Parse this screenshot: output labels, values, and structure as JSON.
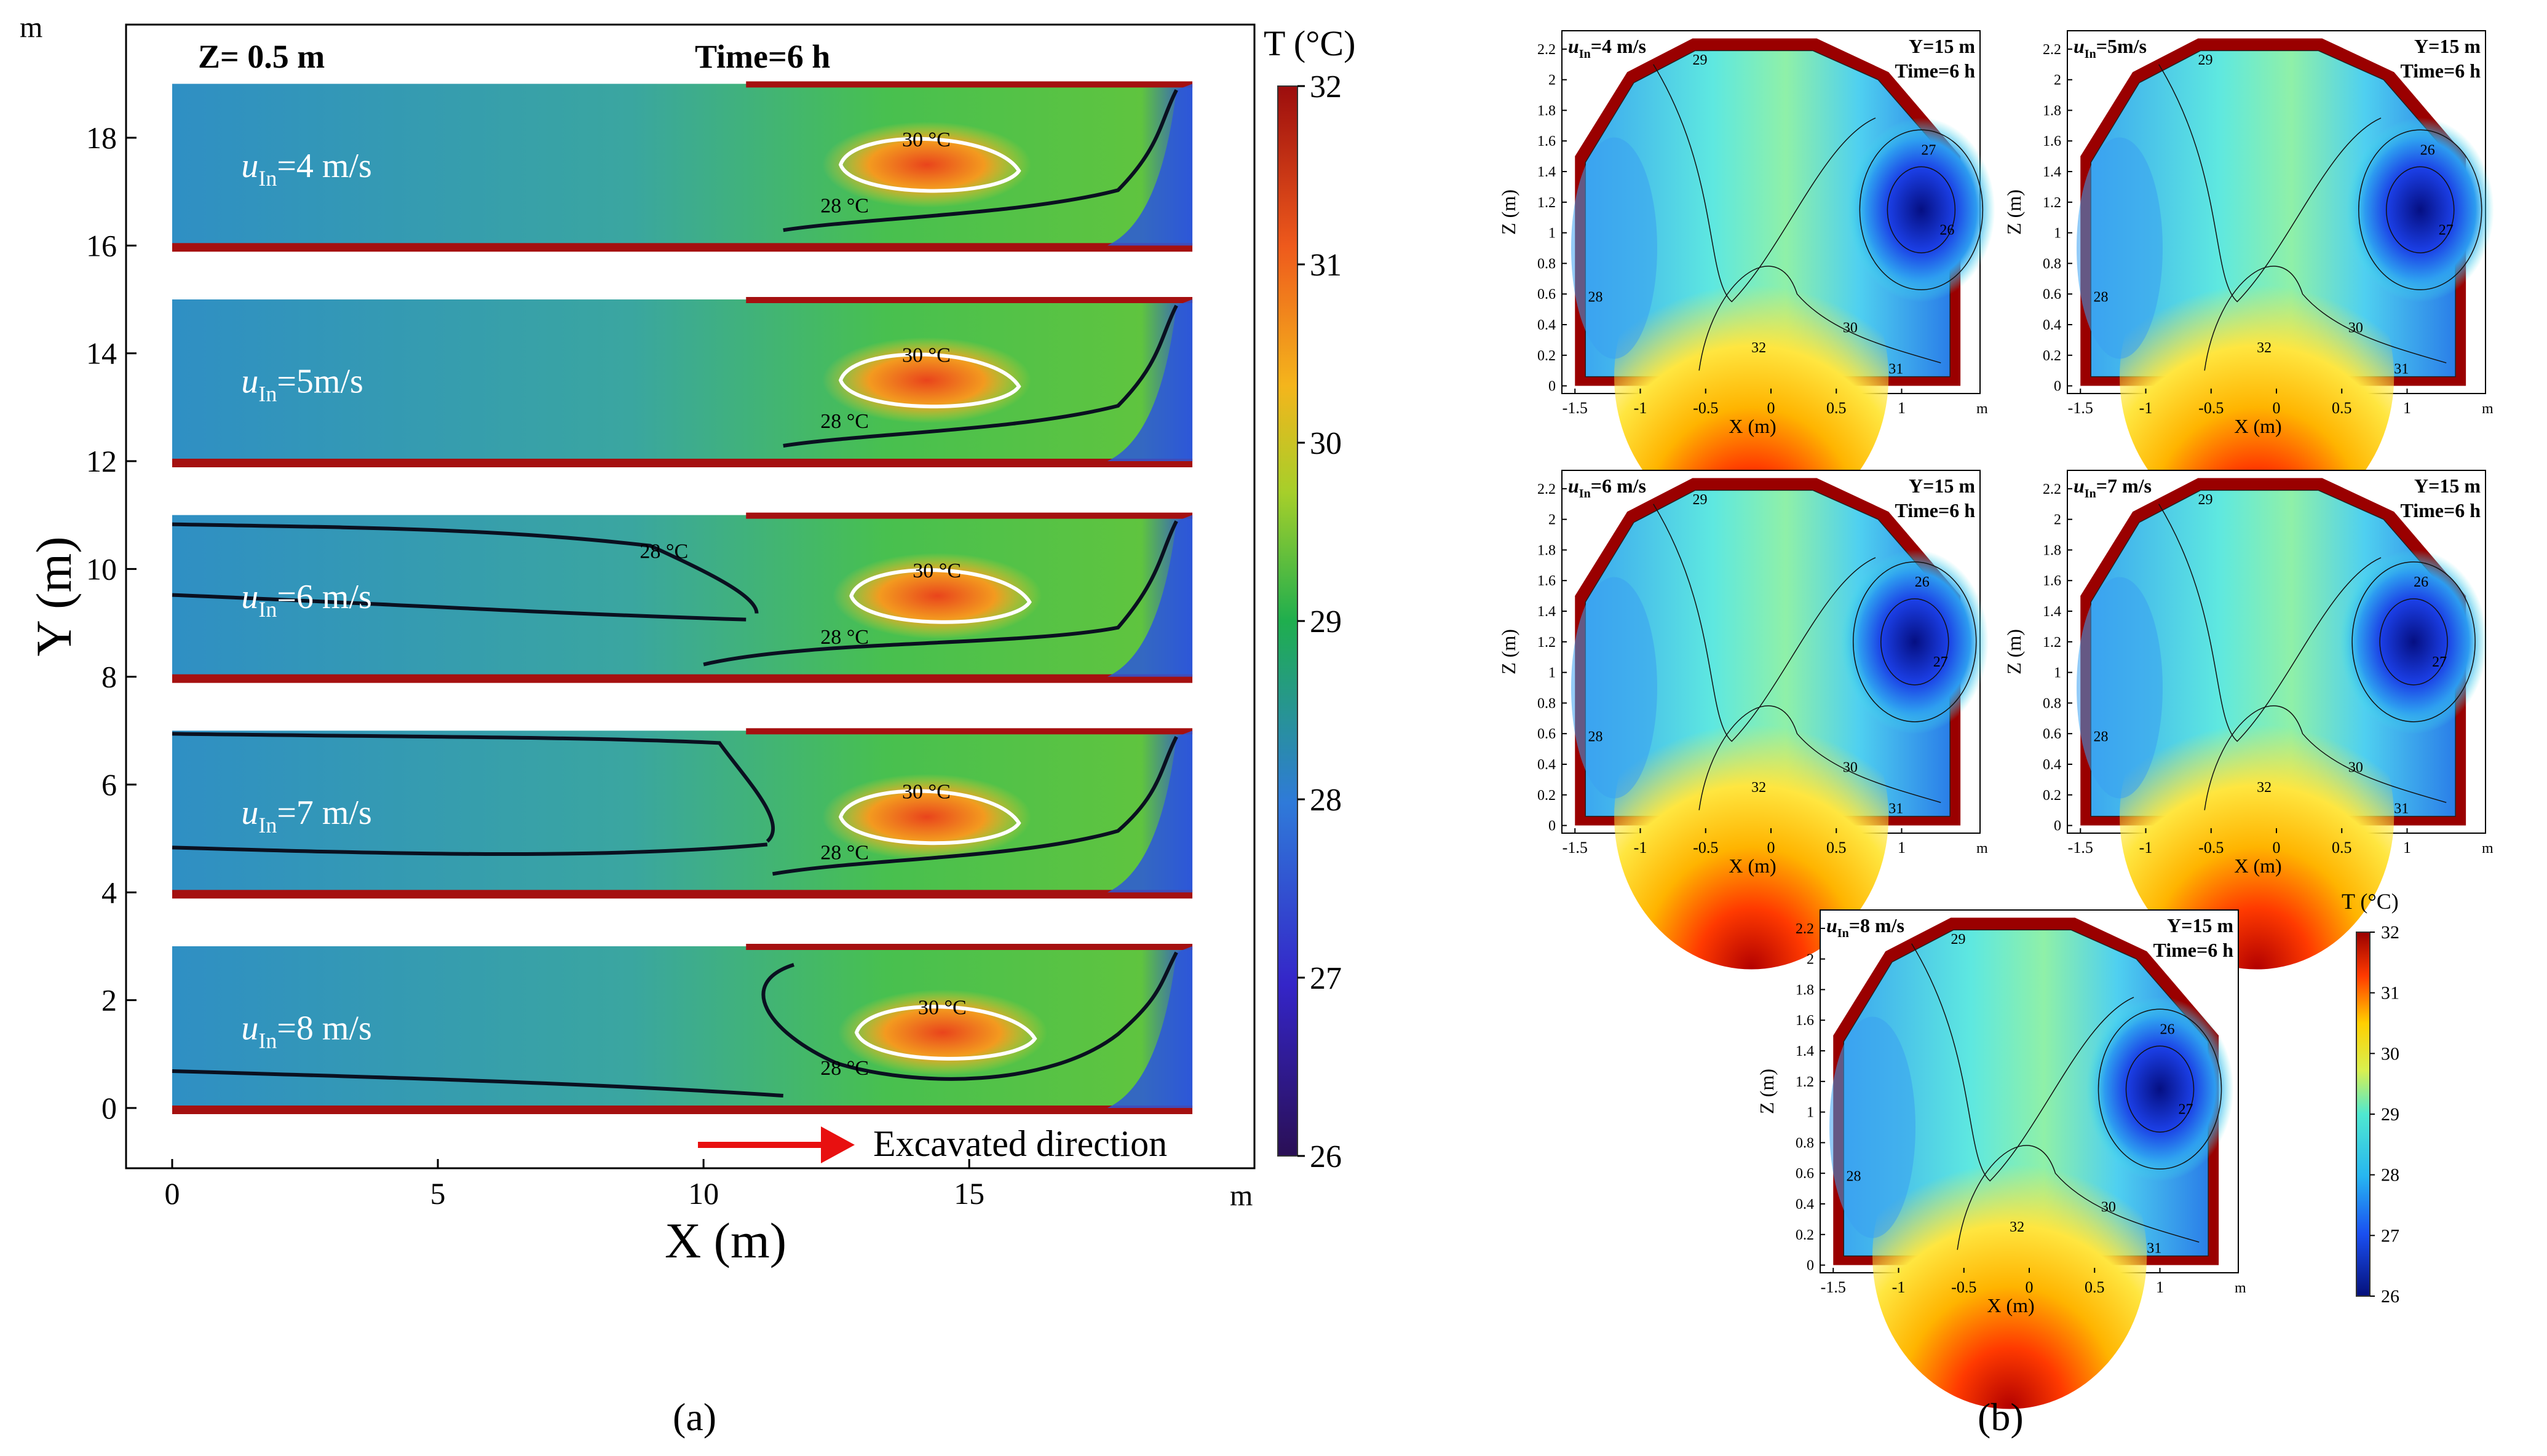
{
  "chart_data": [
    {
      "type": "heatmap",
      "panel": "(a)",
      "title_left": "Z= 0.5 m",
      "title_right": "Time=6 h",
      "xlabel": "X (m)",
      "ylabel": "Y (m)",
      "x_unit": "m",
      "y_unit": "m",
      "xlim": [
        -0.9,
        20.3
      ],
      "ylim": [
        -1.2,
        20.2
      ],
      "x_ticks": [
        0,
        5,
        10,
        15
      ],
      "y_ticks": [
        0,
        2,
        4,
        6,
        8,
        10,
        12,
        14,
        16,
        18
      ],
      "arrow_label": "Excavated direction",
      "strips": [
        {
          "label_u": "u",
          "label_sub": "In",
          "label_rest": "=4 m/s",
          "inlet_velocity_mps": 4,
          "y_range": [
            16.0,
            19.0
          ],
          "hot_center": [
            14.2,
            17.5
          ],
          "contour_30": "30 °C",
          "contour_28": "28 °C"
        },
        {
          "label_u": "u",
          "label_sub": "In",
          "label_rest": "=5m/s",
          "inlet_velocity_mps": 5,
          "y_range": [
            12.0,
            15.0
          ],
          "hot_center": [
            14.2,
            13.5
          ],
          "contour_30": "30 °C",
          "contour_28": "28 °C"
        },
        {
          "label_u": "u",
          "label_sub": "In",
          "label_rest": "=6 m/s",
          "inlet_velocity_mps": 6,
          "y_range": [
            8.0,
            11.0
          ],
          "hot_center": [
            14.4,
            9.5
          ],
          "contour_30": "30 °C",
          "contour_28": "28 °C",
          "contour_28b": "28 °C"
        },
        {
          "label_u": "u",
          "label_sub": "In",
          "label_rest": "=7 m/s",
          "inlet_velocity_mps": 7,
          "y_range": [
            4.0,
            7.0
          ],
          "hot_center": [
            14.2,
            5.4
          ],
          "contour_30": "30 °C",
          "contour_28": "28 °C"
        },
        {
          "label_u": "u",
          "label_sub": "In",
          "label_rest": "=8 m/s",
          "inlet_velocity_mps": 8,
          "y_range": [
            0.0,
            3.0
          ],
          "hot_center": [
            14.5,
            1.4
          ],
          "contour_30": "30 °C",
          "contour_28": "28 °C"
        }
      ],
      "colorbar": {
        "title": "T (°C)",
        "min": 26,
        "max": 32,
        "ticks": [
          26,
          27,
          28,
          29,
          30,
          31,
          32
        ]
      }
    },
    {
      "type": "heatmap",
      "panel": "(b)",
      "xlabel": "X (m)",
      "ylabel": "Z (m)",
      "x_unit": "m",
      "xlim": [
        -1.6,
        1.6
      ],
      "ylim": [
        -0.05,
        2.32
      ],
      "x_ticks": [
        -1.5,
        -1,
        -0.5,
        0,
        0.5,
        1
      ],
      "x_tick_labels": [
        "-1.5",
        "-1",
        "-0.5",
        "0",
        "0.5",
        "1"
      ],
      "z_ticks": [
        0,
        0.2,
        0.4,
        0.6,
        0.8,
        1,
        1.2,
        1.4,
        1.6,
        1.8,
        2,
        2.2
      ],
      "z_tick_labels": [
        "0",
        "0.2",
        "0.4",
        "0.6",
        "0.8",
        "1",
        "1.2",
        "1.4",
        "1.6",
        "1.8",
        "2",
        "2.2"
      ],
      "section_label": "Y=15 m",
      "time_label": "Time=6 h",
      "panels": [
        {
          "label_u": "u",
          "label_sub": "In",
          "label_rest": "=4 m/s",
          "inlet_velocity_mps": 4,
          "cold_core": [
            1.15,
            1.15
          ],
          "contour_labels": [
            "29",
            "27",
            "26",
            "28",
            "30",
            "31",
            "32"
          ]
        },
        {
          "label_u": "u",
          "label_sub": "In",
          "label_rest": "=5m/s",
          "inlet_velocity_mps": 5,
          "cold_core": [
            1.1,
            1.15
          ],
          "contour_labels": [
            "29",
            "26",
            "27",
            "28",
            "30",
            "31",
            "32"
          ]
        },
        {
          "label_u": "u",
          "label_sub": "In",
          "label_rest": "=6 m/s",
          "inlet_velocity_mps": 6,
          "cold_core": [
            1.1,
            1.2
          ],
          "contour_labels": [
            "29",
            "26",
            "27",
            "28",
            "30",
            "31",
            "32"
          ]
        },
        {
          "label_u": "u",
          "label_sub": "In",
          "label_rest": "=7 m/s",
          "inlet_velocity_mps": 7,
          "cold_core": [
            1.05,
            1.2
          ],
          "contour_labels": [
            "29",
            "26",
            "27",
            "28",
            "30",
            "31",
            "32"
          ]
        },
        {
          "label_u": "u",
          "label_sub": "In",
          "label_rest": "=8 m/s",
          "inlet_velocity_mps": 8,
          "cold_core": [
            1.0,
            1.15
          ],
          "contour_labels": [
            "29",
            "26",
            "27",
            "28",
            "30",
            "31",
            "32"
          ]
        }
      ],
      "colorbar": {
        "title": "T (°C)",
        "min": 26,
        "max": 32,
        "ticks": [
          26,
          27,
          28,
          29,
          30,
          31,
          32
        ]
      }
    }
  ],
  "captions": {
    "a": "(a)",
    "b": "(b)"
  }
}
